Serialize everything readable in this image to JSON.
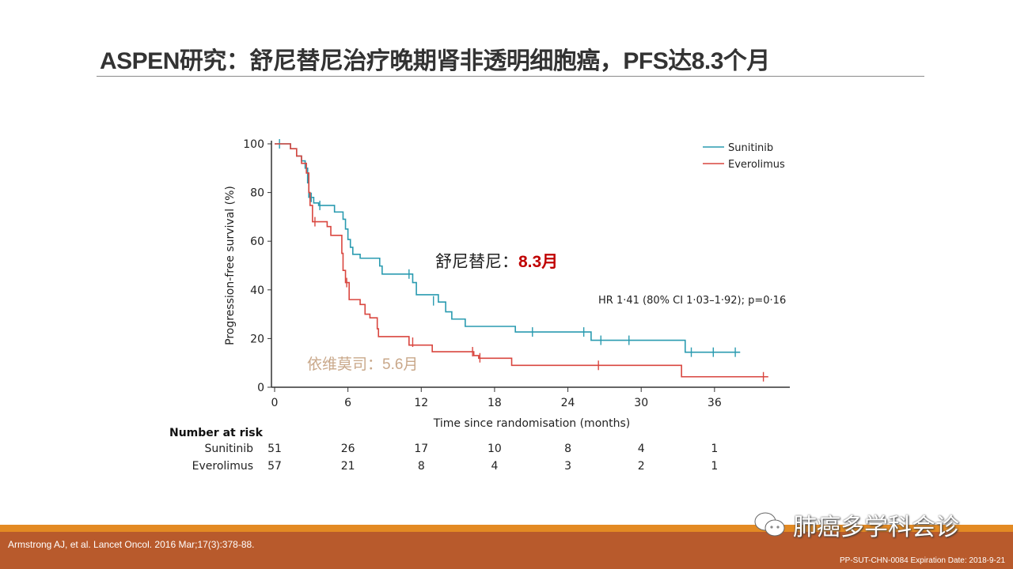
{
  "slide": {
    "title": "ASPEN研究：舒尼替尼治疗晚期肾非透明细胞癌，PFS达8.3个月",
    "reference": "Armstrong AJ,  et al. Lancet Oncol. 2016 Mar;17(3):378-88.",
    "code": "PP-SUT-CHN-0084  Expiration Date: 2018-9-21",
    "watermark": "肺癌多学科会诊",
    "annotation_sunitinib_label": "舒尼替尼：",
    "annotation_sunitinib_value": "8.3月",
    "annotation_everolimus": "依维莫司：5.6月",
    "colors": {
      "sunitinib": "#2a9bb0",
      "everolimus": "#d9463f",
      "footer": "#b85a2c",
      "stripe": "#e38a23",
      "highlight": "#c00000"
    }
  },
  "chart_data": {
    "type": "line",
    "title": "",
    "xlabel": "Time since randomisation (months)",
    "ylabel": "Progression-free survival (%)",
    "xlim": [
      0,
      42
    ],
    "ylim": [
      0,
      100
    ],
    "xticks": [
      "0",
      "6",
      "12",
      "18",
      "24",
      "30",
      "36"
    ],
    "yticks": [
      "0",
      "20",
      "40",
      "60",
      "80",
      "100"
    ],
    "legend": {
      "placement": "top-right",
      "entries": [
        "Sunitinib",
        "Everolimus"
      ]
    },
    "hr_text": "HR 1·41 (80% CI 1·03–1·92); p=0·16",
    "series": [
      {
        "name": "Sunitinib",
        "color": "#2a9bb0",
        "steps": [
          [
            0,
            100
          ],
          [
            1.3,
            98
          ],
          [
            1.8,
            95
          ],
          [
            2.2,
            93
          ],
          [
            2.5,
            90
          ],
          [
            2.7,
            84
          ],
          [
            2.8,
            78
          ],
          [
            3.2,
            75.7
          ],
          [
            3.6,
            74.7
          ],
          [
            4.9,
            72
          ],
          [
            5.6,
            69
          ],
          [
            5.8,
            65
          ],
          [
            6.0,
            60.7
          ],
          [
            6.2,
            57.5
          ],
          [
            6.4,
            54.6
          ],
          [
            7.0,
            53
          ],
          [
            8.6,
            49.8
          ],
          [
            8.8,
            46.5
          ],
          [
            11.3,
            43
          ],
          [
            11.6,
            38
          ],
          [
            13.4,
            35
          ],
          [
            14.0,
            31
          ],
          [
            14.5,
            28
          ],
          [
            15.6,
            25
          ],
          [
            19.7,
            22.7
          ],
          [
            25.9,
            19.3
          ],
          [
            33.6,
            14.4
          ],
          [
            38.1,
            14.4
          ]
        ],
        "censored": [
          [
            0.4,
            100
          ],
          [
            3.0,
            78
          ],
          [
            3.7,
            74.7
          ],
          [
            11.0,
            46.5
          ],
          [
            13.0,
            35.5
          ],
          [
            21.1,
            22.7
          ],
          [
            25.3,
            22.7
          ],
          [
            26.7,
            19.3
          ],
          [
            29.0,
            19.3
          ],
          [
            34.1,
            14.4
          ],
          [
            35.9,
            14.4
          ],
          [
            37.7,
            14.4
          ]
        ]
      },
      {
        "name": "Everolimus",
        "color": "#d9463f",
        "steps": [
          [
            0,
            100
          ],
          [
            1.3,
            98
          ],
          [
            1.8,
            95
          ],
          [
            2.2,
            92
          ],
          [
            2.6,
            88
          ],
          [
            2.8,
            80
          ],
          [
            2.9,
            74.7
          ],
          [
            3.1,
            68
          ],
          [
            4.3,
            66
          ],
          [
            4.6,
            62.4
          ],
          [
            5.5,
            55
          ],
          [
            5.6,
            48
          ],
          [
            5.8,
            43
          ],
          [
            6.1,
            36
          ],
          [
            7.0,
            34
          ],
          [
            7.4,
            30
          ],
          [
            7.8,
            28.5
          ],
          [
            8.4,
            24
          ],
          [
            8.5,
            20.8
          ],
          [
            11.0,
            17.3
          ],
          [
            12.9,
            14.6
          ],
          [
            16.3,
            13
          ],
          [
            16.7,
            11.9
          ],
          [
            19.4,
            9
          ],
          [
            33.3,
            4.3
          ],
          [
            40.4,
            4.3
          ]
        ],
        "censored": [
          [
            3.3,
            68
          ],
          [
            5.9,
            43
          ],
          [
            11.3,
            18.5
          ],
          [
            16.2,
            14.6
          ],
          [
            16.8,
            12.1
          ],
          [
            26.5,
            9
          ],
          [
            40.0,
            4.3
          ]
        ]
      }
    ],
    "risk_table": {
      "header": "Number at risk",
      "times": [
        0,
        6,
        12,
        18,
        24,
        30,
        36
      ],
      "rows": [
        {
          "name": "Sunitinib",
          "values": [
            "51",
            "26",
            "17",
            "10",
            "8",
            "4",
            "1"
          ]
        },
        {
          "name": "Everolimus",
          "values": [
            "57",
            "21",
            "8",
            "4",
            "3",
            "2",
            "1"
          ]
        }
      ]
    }
  }
}
